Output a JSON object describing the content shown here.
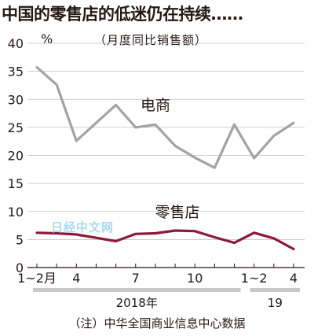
{
  "header": {
    "title": "中国的零售店的低迷仍在持续……",
    "unit": "%",
    "subtitle": "（月度同比销售额）"
  },
  "note": "（注）中华全国商业信息中心数据",
  "watermark": "日经中文网",
  "chart_data": {
    "type": "line",
    "x": [
      "2018-1~2",
      "2018-3",
      "2018-4",
      "2018-5",
      "2018-6",
      "2018-7",
      "2018-8",
      "2018-9",
      "2018-10",
      "2018-11",
      "2018-12",
      "2019-1~2",
      "2019-3",
      "2019-4"
    ],
    "x_tick_labels": [
      {
        "label": "1~2月",
        "index": 0
      },
      {
        "label": "4",
        "index": 2
      },
      {
        "label": "7",
        "index": 5
      },
      {
        "label": "10",
        "index": 8
      },
      {
        "label": "1~2",
        "index": 11
      },
      {
        "label": "4",
        "index": 13
      }
    ],
    "year_labels": [
      {
        "label": "2018年",
        "from": 0,
        "to": 10
      },
      {
        "label": "19",
        "from": 11,
        "to": 13
      }
    ],
    "series": [
      {
        "name": "电商",
        "color": "#a3a3a3",
        "values": [
          35.7,
          32.6,
          22.6,
          25.8,
          29.0,
          25.0,
          25.5,
          21.7,
          19.6,
          17.8,
          25.5,
          19.5,
          23.5,
          25.8
        ]
      },
      {
        "name": "零售店",
        "color": "#8b1a3a",
        "values": [
          6.2,
          6.1,
          5.9,
          5.3,
          4.7,
          6.0,
          6.1,
          6.6,
          6.5,
          5.4,
          4.4,
          6.2,
          5.2,
          3.3
        ]
      }
    ],
    "yticks": [
      0,
      5,
      10,
      15,
      20,
      25,
      30,
      35,
      40
    ],
    "ylim": [
      0,
      40
    ],
    "grid": true
  }
}
